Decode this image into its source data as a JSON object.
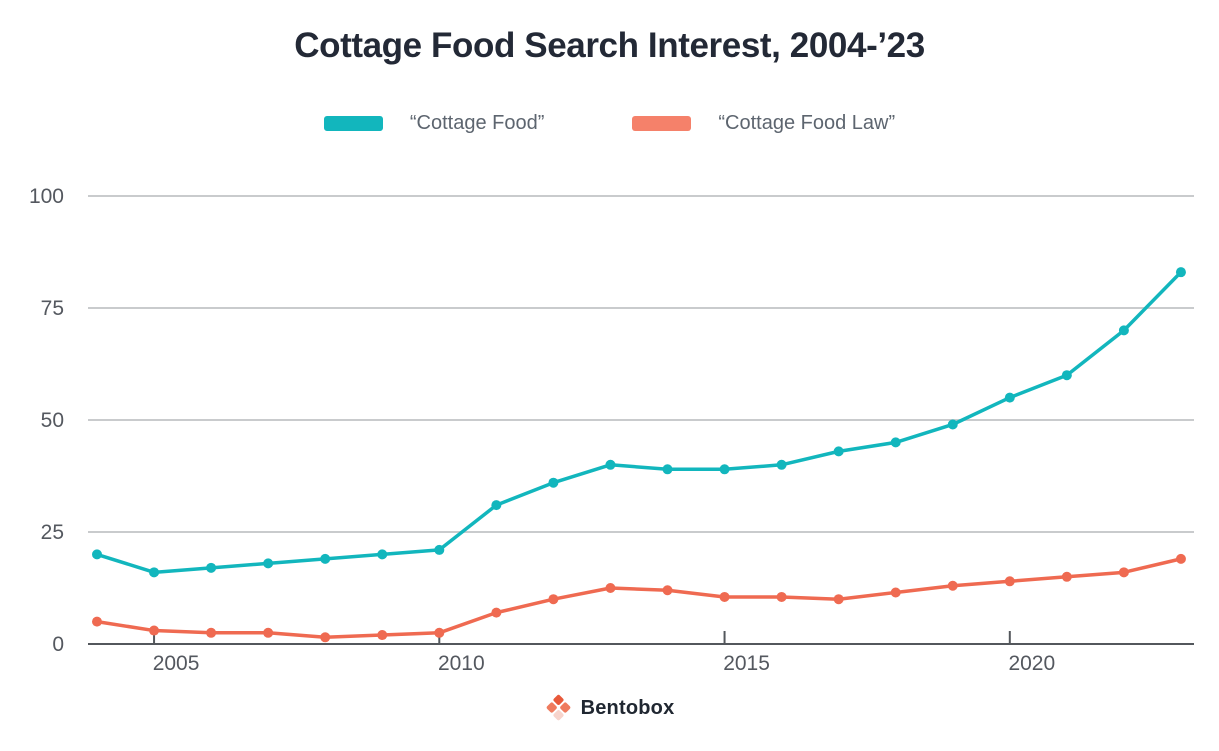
{
  "header": {
    "title": "Cottage Food Search Interest, 2004-’23",
    "title_color": "#232936"
  },
  "legend": {
    "items": [
      {
        "label": "“Cottage Food”",
        "color": "#12b6bd"
      },
      {
        "label": "“Cottage Food Law”",
        "color": "#f5816a"
      }
    ],
    "text_color": "#5d656f"
  },
  "chart_data": {
    "type": "line",
    "title": "Cottage Food Search Interest, 2004-’23",
    "x": [
      2004,
      2005,
      2006,
      2007,
      2008,
      2009,
      2010,
      2011,
      2012,
      2013,
      2014,
      2015,
      2016,
      2017,
      2018,
      2019,
      2020,
      2021,
      2022,
      2023
    ],
    "series": [
      {
        "name": "“Cottage Food”",
        "color": "#12b6bd",
        "values": [
          20,
          16,
          17,
          18,
          19,
          20,
          21,
          31,
          36,
          40,
          39,
          39,
          40,
          43,
          45,
          49,
          55,
          60,
          70,
          83
        ]
      },
      {
        "name": "“Cottage Food Law”",
        "color": "#ef6a51",
        "values": [
          5,
          3,
          2.5,
          2.5,
          1.5,
          2,
          2.5,
          7,
          10,
          12.5,
          12,
          10.5,
          10.5,
          10,
          11.5,
          13,
          14,
          15,
          16,
          19
        ]
      }
    ],
    "xlabel": "",
    "ylabel": "",
    "ylim": [
      0,
      100
    ],
    "yticks": [
      0,
      25,
      50,
      75,
      100
    ],
    "xticks": [
      2005,
      2010,
      2015,
      2020
    ],
    "grid": true,
    "legend_position": "top",
    "gridline_color": "#c9cbcd",
    "baseline_color": "#53575c",
    "axis_label_color": "#54585f"
  },
  "footer": {
    "brand": "Bentobox",
    "logo_colors": {
      "top": "#e8593a",
      "left": "#ef7b5e",
      "right": "#ef7b5e",
      "bottom": "#f7d4cc"
    }
  }
}
